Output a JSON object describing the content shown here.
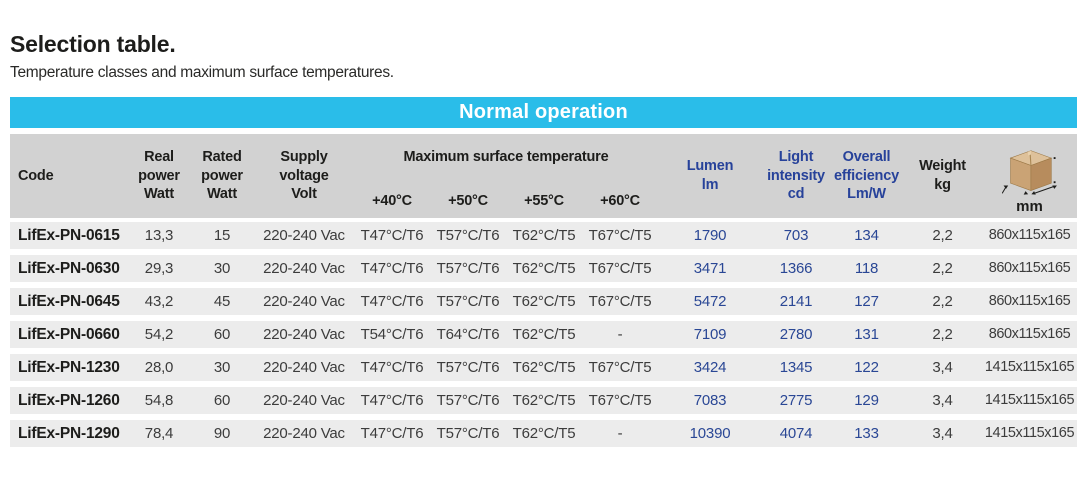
{
  "page": {
    "title": "Selection table.",
    "subtitle": "Temperature classes and maximum surface temperatures."
  },
  "banner": {
    "label": "Normal operation"
  },
  "colors": {
    "banner_bg": "#2abde9",
    "banner_text": "#ffffff",
    "header_band_bg": "#d2d2d2",
    "row_bg": "#ececec",
    "navy_text": "#2a4795",
    "black_text": "#1d1d1b"
  },
  "table": {
    "header": {
      "code": "Code",
      "real_power": "Real\npower\nWatt",
      "rated_power": "Rated\npower\nWatt",
      "supply_voltage": "Supply\nvoltage\nVolt",
      "max_surface_temp_group": "Maximum surface temperature",
      "temp_40": "+40°C",
      "temp_50": "+50°C",
      "temp_55": "+55°C",
      "temp_60": "+60°C",
      "lumen": "Lumen\nlm",
      "light_intensity": "Light\nintensity\ncd",
      "overall_efficiency": "Overall\nefficiency\nLm/W",
      "weight": "Weight\nkg",
      "dimensions_icon": "package-box-icon",
      "dimensions_unit": "mm"
    },
    "rows": [
      {
        "code": "LifEx-PN-0615",
        "real_power": "13,3",
        "rated_power": "15",
        "supply_voltage": "220-240 Vac",
        "t40": "T47°C/T6",
        "t50": "T57°C/T6",
        "t55": "T62°C/T5",
        "t60": "T67°C/T5",
        "lumen": "1790",
        "light_intensity": "703",
        "overall_efficiency": "134",
        "weight": "2,2",
        "dimensions": "860x115x165"
      },
      {
        "code": "LifEx-PN-0630",
        "real_power": "29,3",
        "rated_power": "30",
        "supply_voltage": "220-240 Vac",
        "t40": "T47°C/T6",
        "t50": "T57°C/T6",
        "t55": "T62°C/T5",
        "t60": "T67°C/T5",
        "lumen": "3471",
        "light_intensity": "1366",
        "overall_efficiency": "118",
        "weight": "2,2",
        "dimensions": "860x115x165"
      },
      {
        "code": "LifEx-PN-0645",
        "real_power": "43,2",
        "rated_power": "45",
        "supply_voltage": "220-240 Vac",
        "t40": "T47°C/T6",
        "t50": "T57°C/T6",
        "t55": "T62°C/T5",
        "t60": "T67°C/T5",
        "lumen": "5472",
        "light_intensity": "2141",
        "overall_efficiency": "127",
        "weight": "2,2",
        "dimensions": "860x115x165"
      },
      {
        "code": "LifEx-PN-0660",
        "real_power": "54,2",
        "rated_power": "60",
        "supply_voltage": "220-240 Vac",
        "t40": "T54°C/T6",
        "t50": "T64°C/T6",
        "t55": "T62°C/T5",
        "t60": "-",
        "lumen": "7109",
        "light_intensity": "2780",
        "overall_efficiency": "131",
        "weight": "2,2",
        "dimensions": "860x115x165"
      },
      {
        "code": "LifEx-PN-1230",
        "real_power": "28,0",
        "rated_power": "30",
        "supply_voltage": "220-240 Vac",
        "t40": "T47°C/T6",
        "t50": "T57°C/T6",
        "t55": "T62°C/T5",
        "t60": "T67°C/T5",
        "lumen": "3424",
        "light_intensity": "1345",
        "overall_efficiency": "122",
        "weight": "3,4",
        "dimensions": "1415x115x165"
      },
      {
        "code": "LifEx-PN-1260",
        "real_power": "54,8",
        "rated_power": "60",
        "supply_voltage": "220-240 Vac",
        "t40": "T47°C/T6",
        "t50": "T57°C/T6",
        "t55": "T62°C/T5",
        "t60": "T67°C/T5",
        "lumen": "7083",
        "light_intensity": "2775",
        "overall_efficiency": "129",
        "weight": "3,4",
        "dimensions": "1415x115x165"
      },
      {
        "code": "LifEx-PN-1290",
        "real_power": "78,4",
        "rated_power": "90",
        "supply_voltage": "220-240 Vac",
        "t40": "T47°C/T6",
        "t50": "T57°C/T6",
        "t55": "T62°C/T5",
        "t60": "-",
        "lumen": "10390",
        "light_intensity": "4074",
        "overall_efficiency": "133",
        "weight": "3,4",
        "dimensions": "1415x115x165"
      }
    ]
  }
}
